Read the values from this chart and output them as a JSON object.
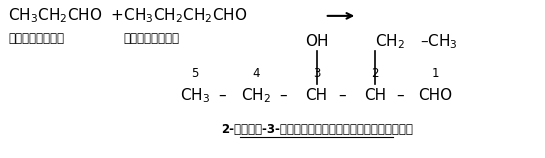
{
  "bg_color": "#ffffff",
  "fig_width": 5.45,
  "fig_height": 1.58,
  "dpi": 100,
  "fs": 11,
  "fs_small": 8.5,
  "label1": "प्रोपेनल",
  "label2": "ब्यूटेनल",
  "product_name": "2-एथिल-3-हाइड्रॉक्सीपेन्टेनल"
}
